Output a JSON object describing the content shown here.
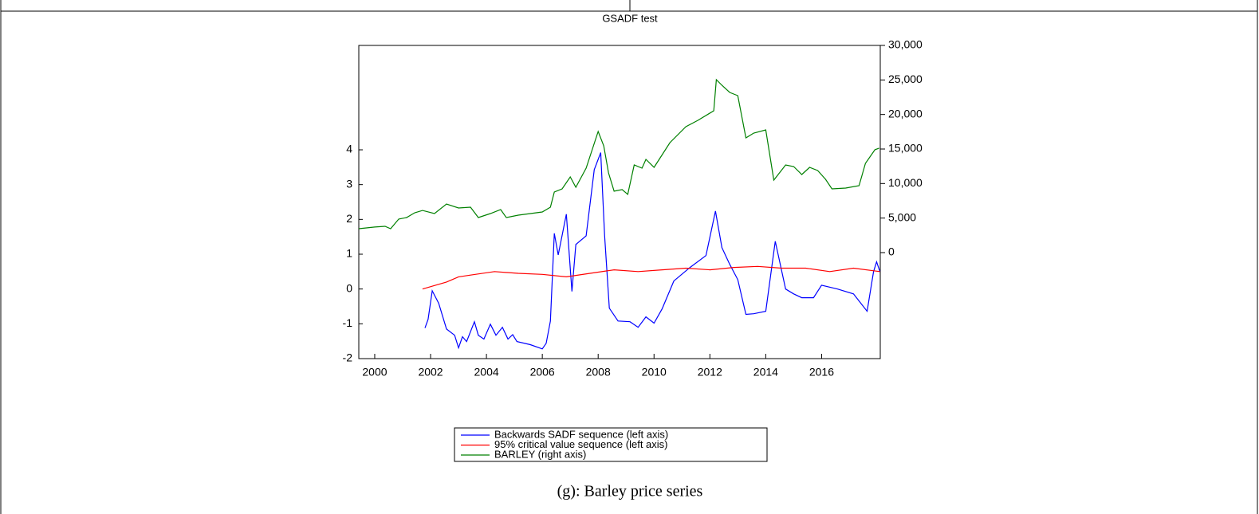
{
  "chart_data": {
    "type": "line",
    "title": "GSADF test",
    "caption": "(g): Barley price series",
    "xlim": [
      1999.43,
      2018.1
    ],
    "xticks": [
      2000,
      2002,
      2004,
      2006,
      2008,
      2010,
      2012,
      2014,
      2016
    ],
    "ylim": [
      -2,
      7
    ],
    "yticks": [
      -2,
      -1,
      0,
      1,
      2,
      3,
      4
    ],
    "y2lim": [
      -15350,
      30000
    ],
    "y2ticks": [
      0,
      {
        "value": 5000,
        "label": "5,000"
      },
      {
        "value": 10000,
        "label": "10,000"
      },
      {
        "value": 15000,
        "label": "15,000"
      },
      {
        "value": 20000,
        "label": "20,000"
      },
      {
        "value": 25000,
        "label": "25,000"
      },
      {
        "value": 30000,
        "label": "30,000"
      }
    ],
    "series": [
      {
        "name": "Backwards SADF sequence (left axis)",
        "color": "#0000ff",
        "x": [
          2001.8,
          2001.91,
          2002.06,
          2002.29,
          2002.57,
          2002.86,
          2003,
          2003.14,
          2003.29,
          2003.57,
          2003.71,
          2003.91,
          2004.14,
          2004.34,
          2004.57,
          2004.77,
          2004.94,
          2005.09,
          2005.57,
          2006,
          2006.14,
          2006.29,
          2006.43,
          2006.57,
          2006.86,
          2007.06,
          2007.2,
          2007.57,
          2007.86,
          2008.09,
          2008.23,
          2008.4,
          2008.71,
          2009.14,
          2009.43,
          2009.71,
          2010,
          2010.29,
          2010.71,
          2011.29,
          2011.86,
          2012.2,
          2012.43,
          2012.71,
          2013,
          2013.29,
          2013.57,
          2014,
          2014.34,
          2014.71,
          2015,
          2015.29,
          2015.71,
          2016,
          2016.57,
          2017.14,
          2017.63,
          2017.86,
          2017.97,
          2018.09
        ],
        "values": [
          -1.12,
          -0.87,
          -0.05,
          -0.41,
          -1.15,
          -1.33,
          -1.69,
          -1.37,
          -1.51,
          -0.94,
          -1.33,
          -1.44,
          -1.01,
          -1.33,
          -1.1,
          -1.44,
          -1.31,
          -1.51,
          -1.6,
          -1.72,
          -1.56,
          -0.92,
          1.6,
          0.98,
          2.15,
          -0.07,
          1.28,
          1.53,
          3.43,
          3.92,
          1.53,
          -0.55,
          -0.92,
          -0.94,
          -1.1,
          -0.8,
          -0.98,
          -0.57,
          0.23,
          0.62,
          0.96,
          2.24,
          1.19,
          0.71,
          0.27,
          -0.73,
          -0.71,
          -0.64,
          1.37,
          0,
          -0.14,
          -0.25,
          -0.25,
          0.11,
          0,
          -0.14,
          -0.64,
          0.5,
          0.78,
          0.5
        ]
      },
      {
        "name": "95% critical value sequence (left axis)",
        "color": "#ff0000",
        "x": [
          2001.71,
          2002.14,
          2002.57,
          2003,
          2003.43,
          2004.29,
          2005.14,
          2006,
          2006.86,
          2007.71,
          2008.57,
          2009.43,
          2010.29,
          2011.14,
          2012,
          2012.86,
          2013.71,
          2014.57,
          2015.43,
          2016.29,
          2017.14,
          2018.09
        ],
        "values": [
          0,
          0.1,
          0.2,
          0.35,
          0.4,
          0.5,
          0.45,
          0.42,
          0.35,
          0.45,
          0.55,
          0.5,
          0.55,
          0.6,
          0.55,
          0.62,
          0.65,
          0.6,
          0.6,
          0.5,
          0.6,
          0.5
        ]
      },
      {
        "name": "BARLEY (right axis)",
        "color": "#008000",
        "axis": "y2",
        "x": [
          1999.43,
          2000,
          2000.37,
          2000.57,
          2000.86,
          2001.14,
          2001.43,
          2001.71,
          2002.14,
          2002.57,
          2003,
          2003.43,
          2003.71,
          2004.14,
          2004.51,
          2004.71,
          2005.14,
          2005.57,
          2006,
          2006.29,
          2006.43,
          2006.71,
          2007,
          2007.2,
          2007.57,
          2008,
          2008.2,
          2008.37,
          2008.57,
          2008.86,
          2009.06,
          2009.29,
          2009.57,
          2009.71,
          2010,
          2010.57,
          2011.14,
          2011.57,
          2012.14,
          2012.23,
          2012.43,
          2012.71,
          2013,
          2013.29,
          2013.57,
          2014,
          2014.29,
          2014.71,
          2015,
          2015.29,
          2015.57,
          2015.86,
          2016.14,
          2016.37,
          2016.86,
          2017.34,
          2017.57,
          2017.91,
          2018.06
        ],
        "values": [
          3460,
          3700,
          3800,
          3460,
          4850,
          5080,
          5770,
          6100,
          5650,
          7040,
          6460,
          6580,
          5080,
          5650,
          6230,
          5080,
          5420,
          5650,
          5880,
          6580,
          8770,
          9230,
          10960,
          9460,
          12230,
          17540,
          15460,
          11540,
          8890,
          9120,
          8430,
          12690,
          12230,
          13500,
          12350,
          15920,
          18230,
          19150,
          20540,
          25040,
          24230,
          23190,
          22730,
          16620,
          17310,
          17770,
          10500,
          12690,
          12460,
          11310,
          12350,
          11880,
          10620,
          9230,
          9350,
          9690,
          12920,
          14890,
          15120
        ]
      }
    ]
  }
}
